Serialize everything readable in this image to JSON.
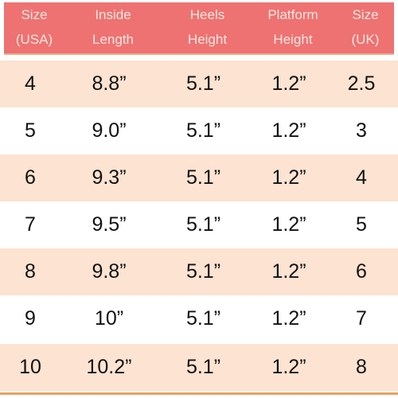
{
  "header": {
    "columns": [
      {
        "line1": "Size",
        "line2": "(USA)"
      },
      {
        "line1": "Inside",
        "line2": "Length"
      },
      {
        "line1": "Heels",
        "line2": "Height"
      },
      {
        "line1": "Platform",
        "line2": "Height"
      },
      {
        "line1": "Size",
        "line2": "(UK)"
      }
    ]
  },
  "rows": [
    [
      "4",
      "8.8”",
      "5.1”",
      "1.2”",
      "2.5"
    ],
    [
      "5",
      "9.0”",
      "5.1”",
      "1.2”",
      "3"
    ],
    [
      "6",
      "9.3”",
      "5.1”",
      "1.2”",
      "4"
    ],
    [
      "7",
      "9.5”",
      "5.1”",
      "1.2”",
      "5"
    ],
    [
      "8",
      "9.8”",
      "5.1”",
      "1.2”",
      "6"
    ],
    [
      "9",
      "10”",
      "5.1”",
      "1.2”",
      "7"
    ],
    [
      "10",
      "10.2”",
      "5.1”",
      "1.2”",
      "8"
    ]
  ],
  "colors": {
    "header_bg": "#ee7272",
    "header_text": "#fce6e0",
    "row_shade": "#fde3d1",
    "row_plain": "#ffffff",
    "cell_text": "#111111",
    "rule": "#e8a060"
  }
}
